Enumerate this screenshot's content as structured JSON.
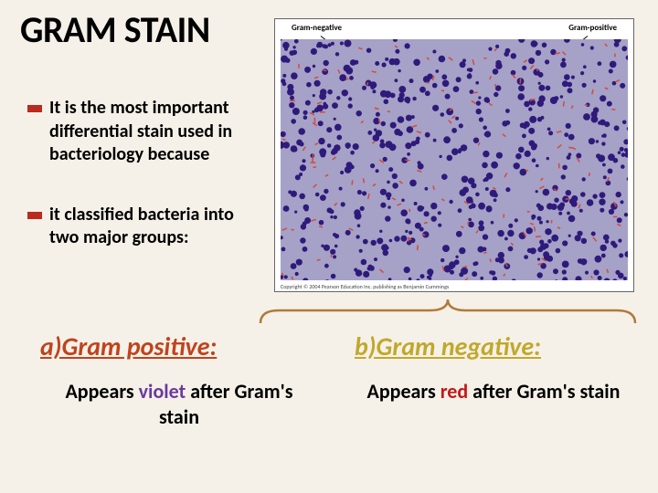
{
  "title": "GRAM STAIN",
  "bullets": [
    "It is the most important differential stain used in bacteriology because",
    "it classified bacteria into two major groups:"
  ],
  "micrograph": {
    "label_left": "Gram-negative",
    "label_right": "Gram-positive",
    "caption": "Copyright © 2004 Pearson Education Inc. publishing as Benjamin Cummings",
    "colors": {
      "background": "#a6a1c7",
      "gram_positive": "#2e1a7a",
      "gram_negative": "#d34a3a"
    },
    "dot_count_positive": 600,
    "dot_count_negative": 140
  },
  "brace": {
    "color": "#b07a3a",
    "stroke_width": 2.5
  },
  "columns": [
    {
      "heading": "a)Gram positive:",
      "heading_color": "#c0431c",
      "desc_prefix": "Appears ",
      "highlight_word": "violet",
      "highlight_color": "#6a3a9f",
      "desc_suffix": " after Gram's stain"
    },
    {
      "heading": "b)Gram negative:",
      "heading_color": "#c0a82b",
      "desc_prefix": "Appears ",
      "highlight_word": "red",
      "highlight_color": "#c41818",
      "desc_suffix": " after Gram's stain"
    }
  ],
  "styling": {
    "page_bg": "#f5f1e8",
    "bullet_marker_color": "#b82b1e",
    "title_fontsize": 40,
    "bullet_fontsize": 20,
    "heading_fontsize": 28,
    "desc_fontsize": 22
  }
}
